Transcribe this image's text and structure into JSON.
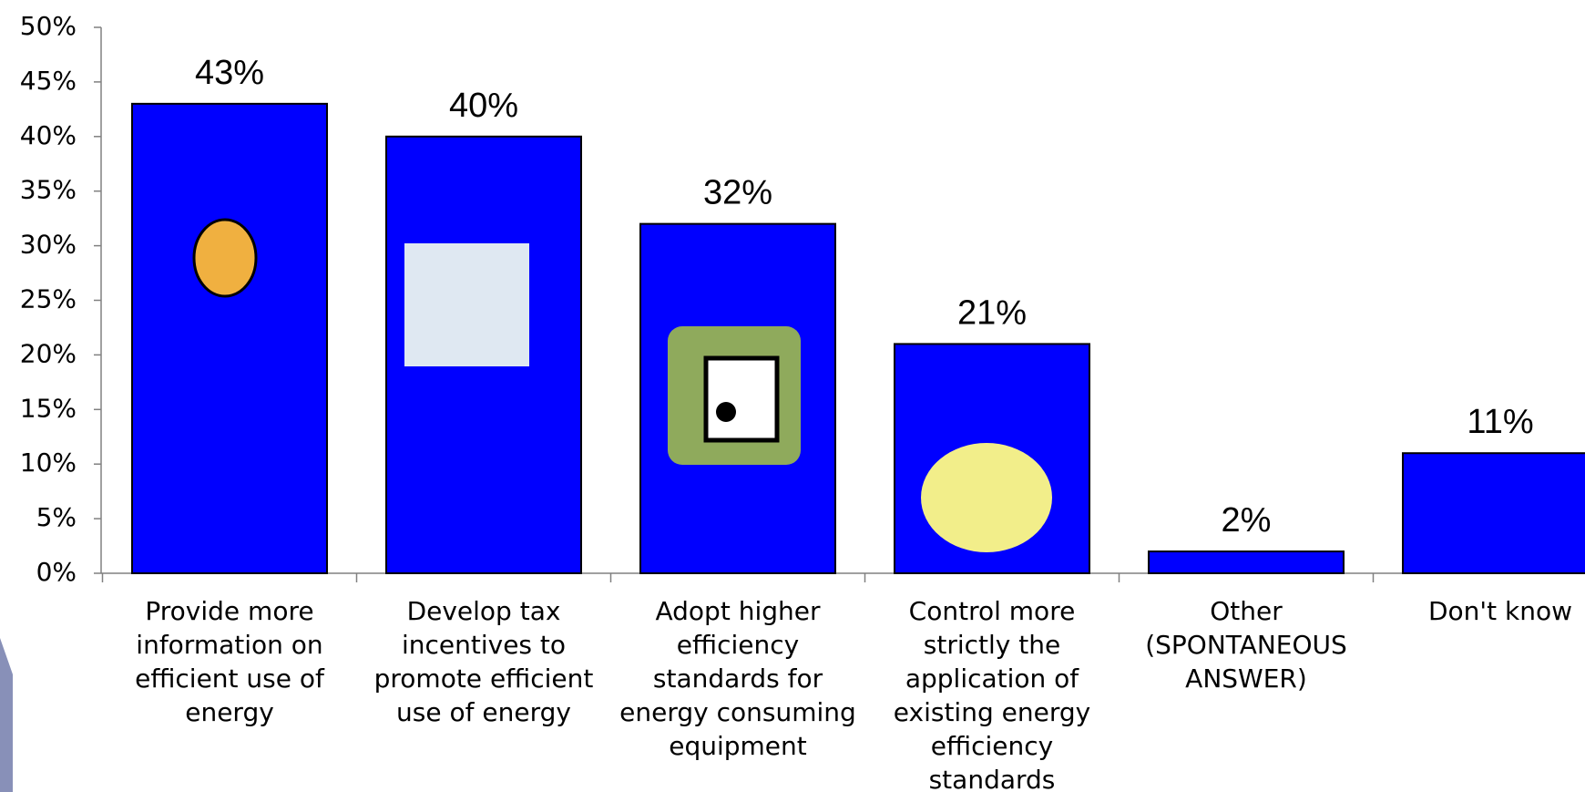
{
  "chart_data": {
    "type": "bar",
    "categories": [
      "Provide more information on efficient use of energy",
      "Develop tax incentives to promote efficient use of energy",
      "Adopt higher efficiency standards for energy consuming equipment",
      "Control more strictly the application of existing energy efficiency standards",
      "Other (SPONTANEOUS ANSWER)",
      "Don't know"
    ],
    "values": [
      43,
      40,
      32,
      21,
      2,
      11
    ],
    "value_labels": [
      "43%",
      "40%",
      "32%",
      "21%",
      "2%",
      "11%"
    ],
    "color": "#0000ff",
    "ylim": [
      0,
      50
    ],
    "yticks": [
      {
        "value": 0,
        "label": "0%"
      },
      {
        "value": 5,
        "label": "5%"
      },
      {
        "value": 10,
        "label": "10%"
      },
      {
        "value": 15,
        "label": "15%"
      },
      {
        "value": 20,
        "label": "20%"
      },
      {
        "value": 25,
        "label": "25%"
      },
      {
        "value": 30,
        "label": "30%"
      },
      {
        "value": 35,
        "label": "35%"
      },
      {
        "value": 40,
        "label": "40%"
      },
      {
        "value": 45,
        "label": "45%"
      },
      {
        "value": 50,
        "label": "50%"
      }
    ],
    "grid": false
  }
}
